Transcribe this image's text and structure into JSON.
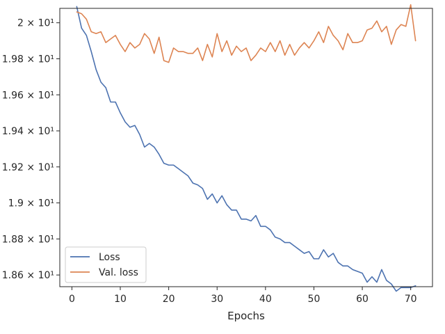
{
  "chart_data": {
    "type": "line",
    "xlabel": "Epochs",
    "ylabel": "",
    "title": "",
    "xlim": [
      -2.5,
      74.5
    ],
    "ylim": [
      18.535,
      20.08
    ],
    "x_ticks": [
      0,
      10,
      20,
      30,
      40,
      50,
      60,
      70
    ],
    "y_ticks": [
      {
        "value": 18.6,
        "label": "1.86 × 10¹"
      },
      {
        "value": 18.8,
        "label": "1.88 × 10¹"
      },
      {
        "value": 19.0,
        "label": "1.9 × 10¹"
      },
      {
        "value": 19.2,
        "label": "1.92 × 10¹"
      },
      {
        "value": 19.4,
        "label": "1.94 × 10¹"
      },
      {
        "value": 19.6,
        "label": "1.96 × 10¹"
      },
      {
        "value": 19.8,
        "label": "1.98 × 10¹"
      },
      {
        "value": 20.0,
        "label": "2 × 10¹"
      }
    ],
    "grid": false,
    "legend": "lower-left",
    "x": [
      1,
      2,
      3,
      4,
      5,
      6,
      7,
      8,
      9,
      10,
      11,
      12,
      13,
      14,
      15,
      16,
      17,
      18,
      19,
      20,
      21,
      22,
      23,
      24,
      25,
      26,
      27,
      28,
      29,
      30,
      31,
      32,
      33,
      34,
      35,
      36,
      37,
      38,
      39,
      40,
      41,
      42,
      43,
      44,
      45,
      46,
      47,
      48,
      49,
      50,
      51,
      52,
      53,
      54,
      55,
      56,
      57,
      58,
      59,
      60,
      61,
      62,
      63,
      64,
      65,
      66,
      67,
      68,
      69,
      70,
      71
    ],
    "series": [
      {
        "name": "Loss",
        "color": "#4c72b0",
        "values": [
          20.09,
          19.97,
          19.93,
          19.84,
          19.74,
          19.67,
          19.64,
          19.56,
          19.56,
          19.5,
          19.45,
          19.42,
          19.43,
          19.38,
          19.31,
          19.33,
          19.31,
          19.27,
          19.22,
          19.21,
          19.21,
          19.19,
          19.17,
          19.15,
          19.11,
          19.1,
          19.08,
          19.02,
          19.05,
          19.0,
          19.04,
          18.99,
          18.96,
          18.96,
          18.91,
          18.91,
          18.9,
          18.93,
          18.87,
          18.87,
          18.85,
          18.81,
          18.8,
          18.78,
          18.78,
          18.76,
          18.74,
          18.72,
          18.73,
          18.69,
          18.69,
          18.74,
          18.7,
          18.72,
          18.67,
          18.65,
          18.65,
          18.63,
          18.62,
          18.61,
          18.56,
          18.59,
          18.56,
          18.63,
          18.57,
          18.55,
          18.51,
          18.53,
          18.53,
          18.53,
          18.54
        ]
      },
      {
        "name": "Val. loss",
        "color": "#dd8452",
        "values": [
          20.06,
          20.05,
          20.02,
          19.95,
          19.94,
          19.95,
          19.89,
          19.91,
          19.93,
          19.88,
          19.84,
          19.89,
          19.86,
          19.88,
          19.94,
          19.91,
          19.83,
          19.92,
          19.79,
          19.78,
          19.86,
          19.84,
          19.84,
          19.83,
          19.83,
          19.86,
          19.79,
          19.88,
          19.81,
          19.94,
          19.84,
          19.9,
          19.82,
          19.87,
          19.84,
          19.86,
          19.79,
          19.82,
          19.86,
          19.84,
          19.89,
          19.84,
          19.9,
          19.82,
          19.88,
          19.82,
          19.86,
          19.89,
          19.86,
          19.9,
          19.95,
          19.89,
          19.98,
          19.93,
          19.9,
          19.85,
          19.94,
          19.89,
          19.89,
          19.9,
          19.96,
          19.97,
          20.01,
          19.95,
          19.98,
          19.88,
          19.96,
          19.99,
          19.98,
          20.1,
          19.9
        ]
      }
    ]
  }
}
